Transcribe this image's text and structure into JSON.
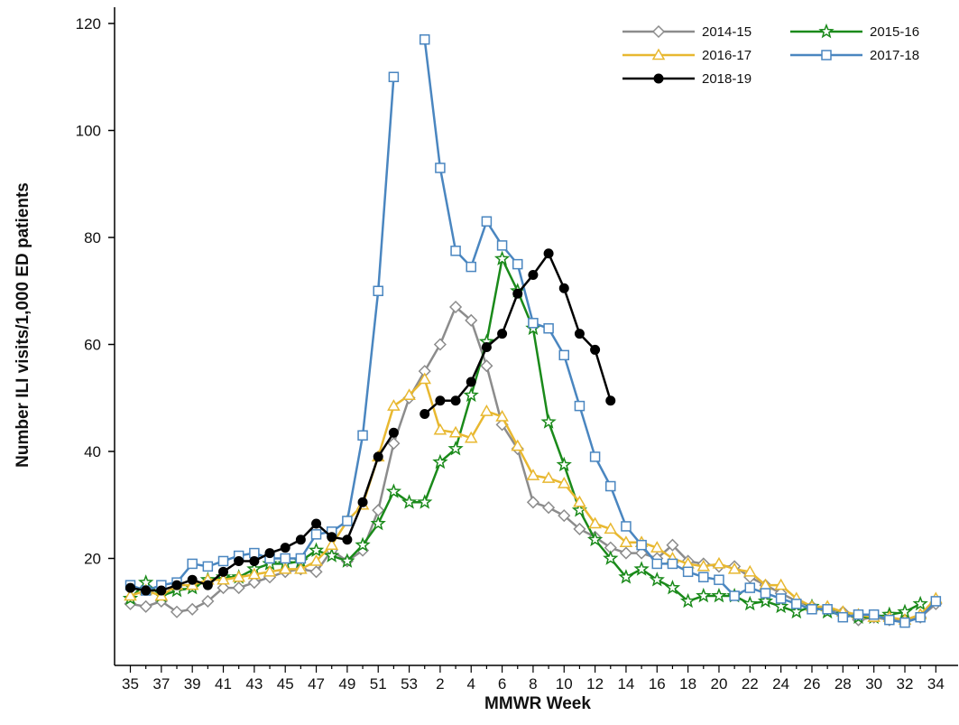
{
  "chart_data": {
    "type": "line",
    "title": "",
    "xlabel": "MMWR Week",
    "ylabel": "Number ILI visits/1,000 ED patients",
    "ylim": [
      0,
      120
    ],
    "yticks": [
      20,
      40,
      60,
      80,
      100,
      120
    ],
    "categories": [
      "35",
      "36",
      "37",
      "38",
      "39",
      "40",
      "41",
      "42",
      "43",
      "44",
      "45",
      "46",
      "47",
      "48",
      "49",
      "50",
      "51",
      "52",
      "53",
      "1",
      "2",
      "3",
      "4",
      "5",
      "6",
      "7",
      "8",
      "9",
      "10",
      "11",
      "12",
      "13",
      "14",
      "15",
      "16",
      "17",
      "18",
      "19",
      "20",
      "21",
      "22",
      "23",
      "24",
      "25",
      "26",
      "27",
      "28",
      "29",
      "30",
      "31",
      "32",
      "33",
      "34"
    ],
    "xtick_labels": [
      "35",
      "37",
      "39",
      "41",
      "43",
      "45",
      "47",
      "49",
      "51",
      "53",
      "2",
      "4",
      "6",
      "8",
      "10",
      "12",
      "14",
      "16",
      "18",
      "20",
      "22",
      "24",
      "26",
      "28",
      "30",
      "32",
      "34"
    ],
    "legend_position": "top-right",
    "grid": false,
    "series": [
      {
        "name": "2014-15",
        "color": "#8c8c8c",
        "marker": "diamond",
        "values": [
          11.5,
          11,
          12,
          10,
          10.5,
          12,
          14.5,
          14.5,
          15.5,
          16.5,
          17.5,
          18,
          17.5,
          21.5,
          19.5,
          21.5,
          29,
          41.5,
          50,
          55,
          60,
          67,
          64.5,
          56,
          45,
          40.5,
          30.5,
          29.5,
          28,
          25.5,
          24,
          22,
          21,
          21,
          20,
          22.5,
          19.5,
          19,
          18.5,
          18.5,
          16.5,
          15,
          13.5,
          12,
          11,
          10.5,
          10,
          8.5,
          9,
          8.5,
          8.5,
          9,
          11.5
        ]
      },
      {
        "name": "2015-16",
        "color": "#1a8a1a",
        "marker": "star",
        "values": [
          12.5,
          15.5,
          13,
          14,
          14.5,
          16,
          16.5,
          16.5,
          18,
          19,
          19,
          19.5,
          21.5,
          20.5,
          19.5,
          22.5,
          26.5,
          32.5,
          30.5,
          30.5,
          38,
          40.5,
          50.5,
          60.5,
          76,
          70,
          63,
          45.5,
          37.5,
          29,
          23.5,
          20,
          16.5,
          18,
          16,
          14.5,
          12,
          13,
          13,
          13,
          11.5,
          12,
          11,
          10,
          11,
          10,
          9.5,
          9,
          9,
          9.5,
          10,
          11.5,
          null
        ]
      },
      {
        "name": "2016-17",
        "color": "#e8b830",
        "marker": "triangle",
        "values": [
          13,
          14,
          13,
          15,
          15,
          16,
          16,
          16.5,
          17,
          17.5,
          18,
          18,
          19.5,
          22.5,
          27,
          30,
          39,
          48.5,
          50.5,
          53.5,
          44,
          43.5,
          42.5,
          47.5,
          46.5,
          41,
          35.5,
          35,
          34,
          30.5,
          26.5,
          25.5,
          23,
          23,
          22,
          20,
          19,
          18.5,
          19,
          18,
          17.5,
          15,
          15,
          12.5,
          11,
          11,
          10,
          9.5,
          9,
          9,
          8.5,
          9.5,
          12.5
        ]
      },
      {
        "name": "2017-18",
        "color": "#4a86c0",
        "marker": "square",
        "values": [
          15,
          14,
          15,
          15.5,
          19,
          18.5,
          19.5,
          20.5,
          21,
          20,
          20,
          20,
          24.5,
          25,
          27,
          43,
          70,
          110,
          null,
          117,
          93,
          77.5,
          74.5,
          83,
          78.5,
          75,
          64,
          63,
          58,
          48.5,
          39,
          33.5,
          26,
          22.5,
          19,
          19,
          17.5,
          16.5,
          16,
          13,
          14.5,
          13.5,
          12.5,
          11.5,
          10.5,
          10.5,
          9,
          9.5,
          9.5,
          8.5,
          8,
          9,
          12
        ]
      },
      {
        "name": "2018-19",
        "color": "#000000",
        "marker": "circle",
        "values": [
          14.5,
          14,
          14,
          15,
          16,
          15,
          17.5,
          19.5,
          19.5,
          21,
          22,
          23.5,
          26.5,
          24,
          23.5,
          30.5,
          39,
          43.5,
          null,
          47,
          49.5,
          49.5,
          53,
          59.5,
          62,
          69.5,
          73,
          77,
          70.5,
          62,
          59,
          49.5,
          null,
          null,
          null,
          null,
          null,
          null,
          null,
          null,
          null,
          null,
          null,
          null,
          null,
          null,
          null,
          null,
          null,
          null,
          null,
          null,
          null
        ]
      }
    ]
  }
}
